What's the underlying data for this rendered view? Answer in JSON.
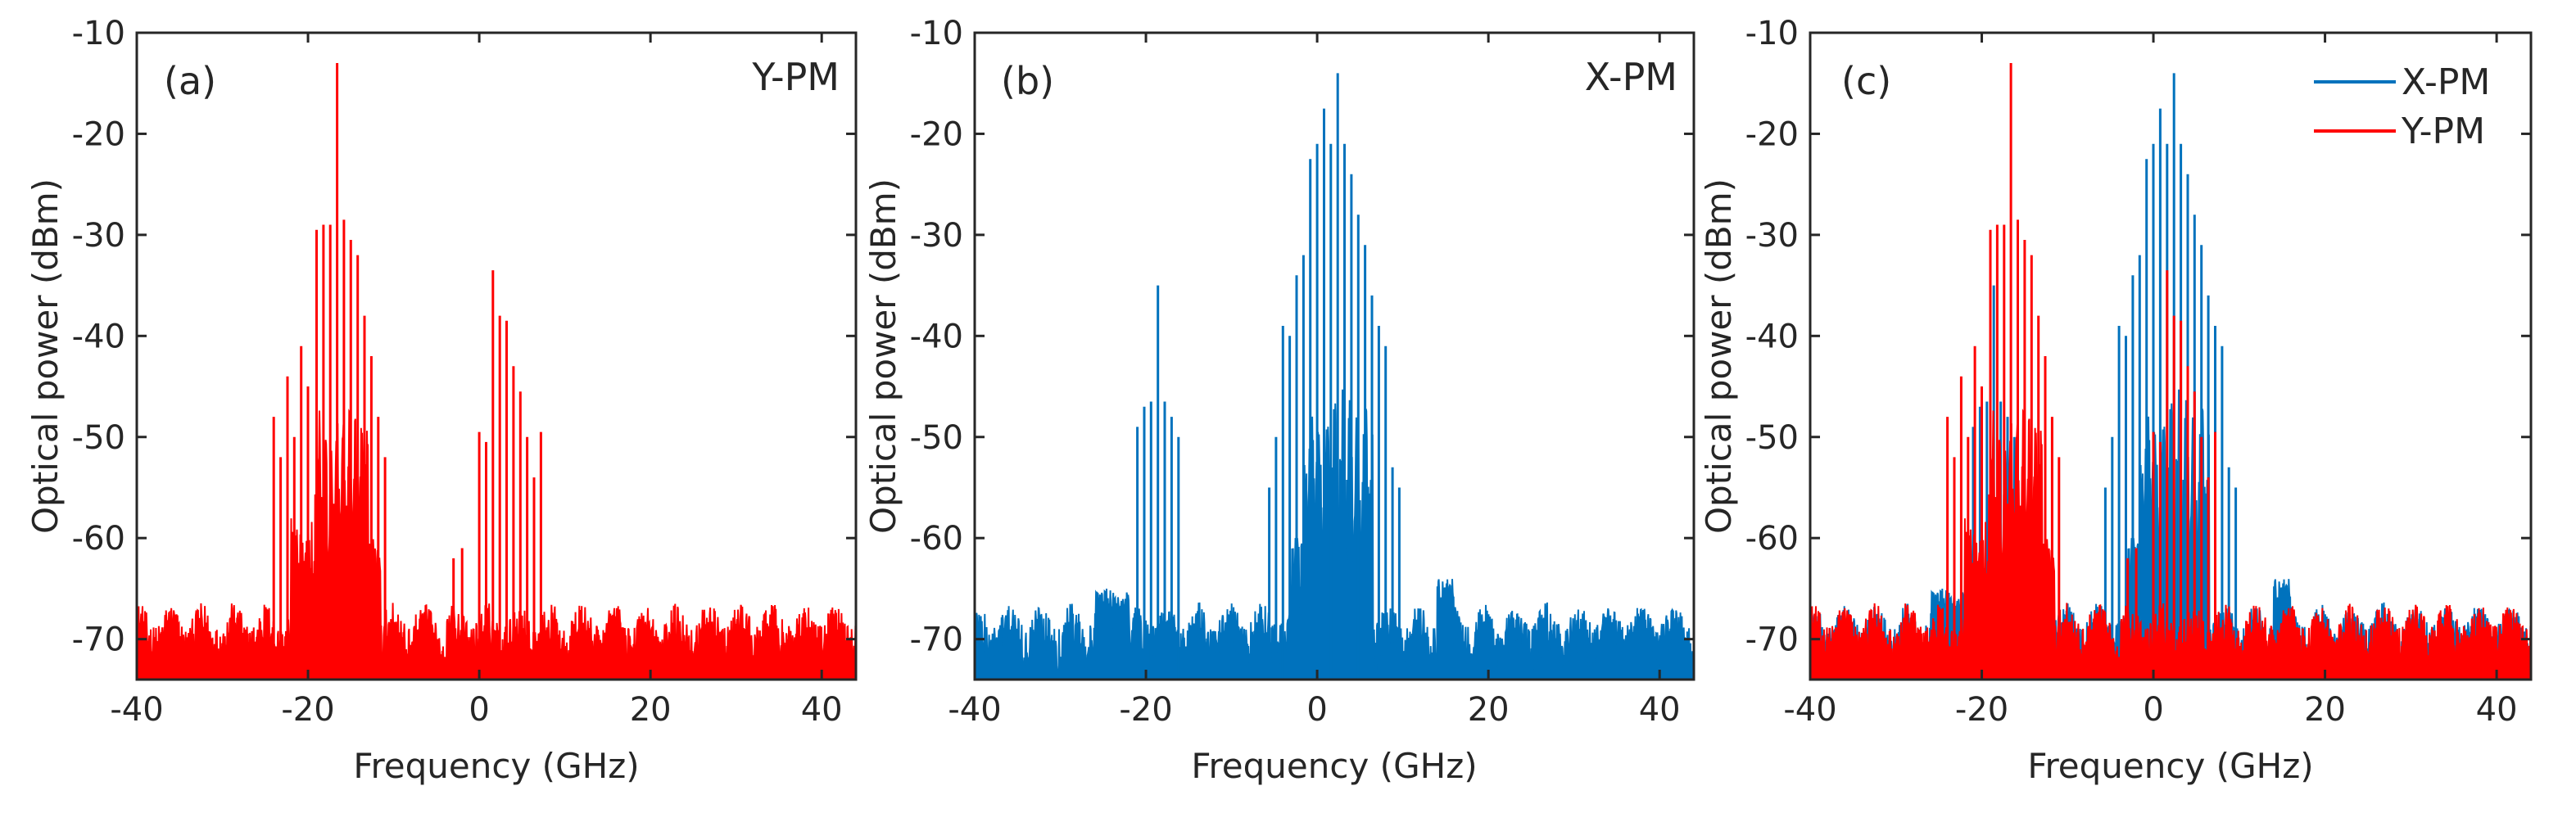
{
  "figure": {
    "panels": [
      {
        "id": "a",
        "panel_label": "(a)",
        "corner_label": "Y-PM",
        "xlabel": "Frequency (GHz)",
        "ylabel": "Optical power (dBm)",
        "xlim": [
          -40,
          44
        ],
        "ylim": [
          -74,
          -10
        ],
        "xticks": [
          -40,
          -20,
          0,
          20,
          40
        ],
        "yticks": [
          -10,
          -20,
          -30,
          -40,
          -50,
          -60,
          -70
        ],
        "series": [
          "Y-PM"
        ]
      },
      {
        "id": "b",
        "panel_label": "(b)",
        "corner_label": "X-PM",
        "xlabel": "Frequency (GHz)",
        "ylabel": "Optical power (dBm)",
        "xlim": [
          -40,
          44
        ],
        "ylim": [
          -74,
          -10
        ],
        "xticks": [
          -40,
          -20,
          0,
          20,
          40
        ],
        "yticks": [
          -10,
          -20,
          -30,
          -40,
          -50,
          -60,
          -70
        ],
        "series": [
          "X-PM"
        ]
      },
      {
        "id": "c",
        "panel_label": "(c)",
        "corner_label": "",
        "xlabel": "Frequency (GHz)",
        "ylabel": "Optical power (dBm)",
        "xlim": [
          -40,
          44
        ],
        "ylim": [
          -74,
          -10
        ],
        "xticks": [
          -40,
          -20,
          0,
          20,
          40
        ],
        "yticks": [
          -10,
          -20,
          -30,
          -40,
          -50,
          -60,
          -70
        ],
        "series": [
          "X-PM",
          "Y-PM"
        ],
        "legend": {
          "position": "top-right",
          "entries": [
            "X-PM",
            "Y-PM"
          ]
        }
      }
    ]
  },
  "chart_data": {
    "type": "line",
    "title": "",
    "xlabel": "Frequency (GHz)",
    "ylabel": "Optical power (dBm)",
    "xlim": [
      -40,
      44
    ],
    "ylim": [
      -74,
      -10
    ],
    "noise_floor_dbm": -70,
    "series": [
      {
        "name": "Y-PM",
        "color": "#ff0000",
        "lines": [
          {
            "x": -24.0,
            "y": -48
          },
          {
            "x": -23.2,
            "y": -52
          },
          {
            "x": -22.4,
            "y": -44
          },
          {
            "x": -21.6,
            "y": -50
          },
          {
            "x": -20.8,
            "y": -41
          },
          {
            "x": -20.0,
            "y": -45
          },
          {
            "x": -19.0,
            "y": -29.5
          },
          {
            "x": -18.2,
            "y": -29
          },
          {
            "x": -17.4,
            "y": -29
          },
          {
            "x": -16.6,
            "y": -13
          },
          {
            "x": -15.8,
            "y": -28.5
          },
          {
            "x": -15.0,
            "y": -30.5
          },
          {
            "x": -14.2,
            "y": -32
          },
          {
            "x": -13.4,
            "y": -38
          },
          {
            "x": -12.6,
            "y": -42
          },
          {
            "x": -11.8,
            "y": -48
          },
          {
            "x": -11.0,
            "y": -52
          },
          {
            "x": -3.0,
            "y": -62
          },
          {
            "x": -2.0,
            "y": -61
          },
          {
            "x": 0.0,
            "y": -49.5
          },
          {
            "x": 0.8,
            "y": -50.5
          },
          {
            "x": 1.6,
            "y": -33.5
          },
          {
            "x": 2.4,
            "y": -38
          },
          {
            "x": 3.2,
            "y": -38.5
          },
          {
            "x": 4.0,
            "y": -43
          },
          {
            "x": 4.8,
            "y": -45.5
          },
          {
            "x": 5.6,
            "y": -50
          },
          {
            "x": 6.4,
            "y": -54
          },
          {
            "x": 7.2,
            "y": -49.5
          }
        ]
      },
      {
        "name": "X-PM",
        "color": "#0072bd",
        "lines": [
          {
            "x": -21.0,
            "y": -49
          },
          {
            "x": -20.2,
            "y": -47
          },
          {
            "x": -19.4,
            "y": -46.5
          },
          {
            "x": -18.6,
            "y": -35
          },
          {
            "x": -17.8,
            "y": -46.5
          },
          {
            "x": -17.0,
            "y": -48
          },
          {
            "x": -16.2,
            "y": -50
          },
          {
            "x": -5.6,
            "y": -55
          },
          {
            "x": -4.8,
            "y": -50
          },
          {
            "x": -4.0,
            "y": -39
          },
          {
            "x": -3.2,
            "y": -40
          },
          {
            "x": -2.4,
            "y": -34
          },
          {
            "x": -1.6,
            "y": -32
          },
          {
            "x": -0.8,
            "y": -22.5
          },
          {
            "x": 0.0,
            "y": -21
          },
          {
            "x": 0.8,
            "y": -17.5
          },
          {
            "x": 1.6,
            "y": -21
          },
          {
            "x": 2.4,
            "y": -14
          },
          {
            "x": 3.2,
            "y": -21
          },
          {
            "x": 4.0,
            "y": -24
          },
          {
            "x": 4.8,
            "y": -28
          },
          {
            "x": 5.6,
            "y": -31
          },
          {
            "x": 6.4,
            "y": -36
          },
          {
            "x": 7.2,
            "y": -39
          },
          {
            "x": 8.0,
            "y": -41
          },
          {
            "x": 8.8,
            "y": -53
          },
          {
            "x": 9.6,
            "y": -55
          }
        ]
      }
    ]
  }
}
